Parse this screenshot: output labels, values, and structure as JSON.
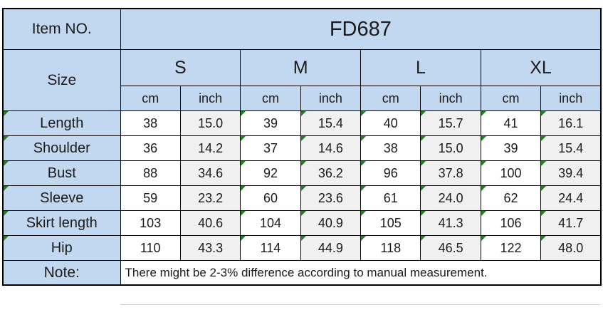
{
  "item": {
    "label": "Item NO.",
    "value": "FD687"
  },
  "size_label": "Size",
  "sizes": [
    "S",
    "M",
    "L",
    "XL"
  ],
  "unit_headers": [
    "cm",
    "inch"
  ],
  "rows": [
    {
      "label": "Length",
      "label_flag": true,
      "values": [
        "38",
        "15.0",
        "39",
        "15.4",
        "40",
        "15.7",
        "41",
        "16.1"
      ],
      "value_flags": [
        false,
        false,
        true,
        true,
        true,
        true,
        true,
        true
      ]
    },
    {
      "label": "Shoulder",
      "label_flag": true,
      "values": [
        "36",
        "14.2",
        "37",
        "14.6",
        "38",
        "15.0",
        "39",
        "15.4"
      ],
      "value_flags": [
        false,
        false,
        true,
        true,
        true,
        true,
        true,
        true
      ]
    },
    {
      "label": "Bust",
      "label_flag": true,
      "values": [
        "88",
        "34.6",
        "92",
        "36.2",
        "96",
        "37.8",
        "100",
        "39.4"
      ],
      "value_flags": [
        false,
        false,
        true,
        true,
        true,
        true,
        true,
        true
      ]
    },
    {
      "label": "Sleeve",
      "label_flag": true,
      "values": [
        "59",
        "23.2",
        "60",
        "23.6",
        "61",
        "24.0",
        "62",
        "24.4"
      ],
      "value_flags": [
        false,
        false,
        true,
        true,
        true,
        true,
        true,
        true
      ]
    },
    {
      "label": "Skirt length",
      "label_flag": true,
      "values": [
        "103",
        "40.6",
        "104",
        "40.9",
        "105",
        "41.3",
        "106",
        "41.7"
      ],
      "value_flags": [
        false,
        false,
        true,
        true,
        true,
        true,
        true,
        true
      ]
    },
    {
      "label": "Hip",
      "label_flag": true,
      "values": [
        "110",
        "43.3",
        "114",
        "44.9",
        "118",
        "46.5",
        "122",
        "48.0"
      ],
      "value_flags": [
        false,
        false,
        true,
        true,
        true,
        true,
        true,
        true
      ]
    }
  ],
  "note": {
    "label": "Note:",
    "text": "There might be 2-3% difference according to manual measurement."
  },
  "colors": {
    "header_bg": "#c2d8f0",
    "cm_bg": "#ffffff",
    "inch_bg": "#f0f0f0",
    "border": "#000000",
    "flag_green": "#1d821d"
  }
}
